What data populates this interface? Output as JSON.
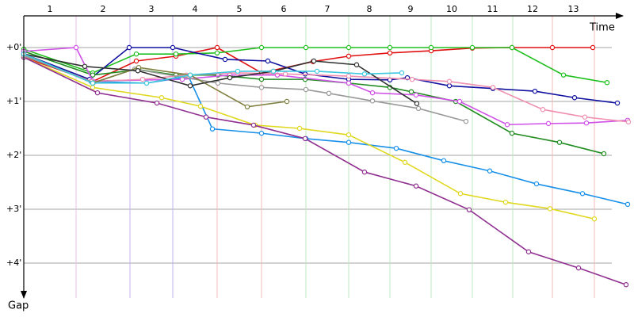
{
  "chart_data": {
    "type": "line",
    "x_label": "Time",
    "y_label": "Gap",
    "xlim": [
      0,
      756
    ],
    "ylim": [
      -0.6,
      4.6
    ],
    "yticks": [
      {
        "value": 0,
        "label": "+0'"
      },
      {
        "value": 1,
        "label": "+1'"
      },
      {
        "value": 2,
        "label": "+2'"
      },
      {
        "value": 3,
        "label": "+3'"
      },
      {
        "value": 4,
        "label": "+4'"
      }
    ],
    "grid": true,
    "lap_labels": [
      "1",
      "2",
      "3",
      "4",
      "5",
      "6",
      "7",
      "8",
      "9",
      "10",
      "11",
      "12",
      "13"
    ],
    "lap_lines": [
      66,
      134,
      188,
      244,
      300,
      356,
      410,
      462,
      514,
      566,
      617,
      667,
      720
    ],
    "lap_line_colors": [
      "#e8c0e8",
      "#c8b0f0",
      "#c0b0f0",
      "#f4b8b8",
      "#f4b8b8",
      "#bfe8bf",
      "#bfe8bf",
      "#bfe8bf",
      "#bfe8bf",
      "#bfe8bf",
      "#bfe8bf",
      "#f4b8b8",
      "#f4b8b8"
    ],
    "series": [
      {
        "color": "#e01010",
        "x": [
          0,
          87,
          142,
          192,
          244,
          300,
          365,
          410,
          462,
          514,
          566,
          616,
          667,
          718
        ],
        "values": [
          0.18,
          0.63,
          0.25,
          0.16,
          0,
          0.47,
          0.26,
          0.16,
          0.1,
          0.06,
          0.01,
          0,
          0,
          0
        ]
      },
      {
        "color": "#20c020",
        "x": [
          0,
          87,
          142,
          192,
          244,
          300,
          356,
          410,
          462,
          514,
          566,
          616,
          681,
          736
        ],
        "values": [
          0.03,
          0.47,
          0.12,
          0.12,
          0.1,
          0,
          0,
          0,
          0,
          0,
          0,
          0,
          0.51,
          0.65
        ]
      },
      {
        "color": "#1010a0",
        "x": [
          0,
          83,
          133,
          188,
          254,
          308,
          355,
          410,
          462,
          484,
          537,
          592,
          645,
          695,
          749
        ],
        "values": [
          0.12,
          0.59,
          0,
          0,
          0.22,
          0.25,
          0.49,
          0.59,
          0.6,
          0.56,
          0.71,
          0.76,
          0.81,
          0.93,
          1.03
        ]
      },
      {
        "color": "#208c20",
        "x": [
          0,
          87,
          145,
          192,
          245,
          300,
          355,
          410,
          462,
          489,
          545,
          616,
          676,
          732
        ],
        "values": [
          0.07,
          0.51,
          0.41,
          0.51,
          0.51,
          0.59,
          0.59,
          0.66,
          0.74,
          0.82,
          1.0,
          1.59,
          1.76,
          1.97
        ]
      },
      {
        "color": "#1890e8",
        "x": [
          0,
          85,
          155,
          208,
          238,
          300,
          356,
          410,
          470,
          530,
          588,
          647,
          705,
          762
        ],
        "values": [
          0.15,
          0.63,
          0.66,
          0.54,
          1.51,
          1.59,
          1.69,
          1.76,
          1.87,
          2.1,
          2.29,
          2.53,
          2.71,
          2.91
        ]
      },
      {
        "color": "#e0d820",
        "x": [
          0,
          87,
          174,
          223,
          292,
          348,
          410,
          481,
          551,
          608,
          664,
          720
        ],
        "values": [
          0.18,
          0.74,
          0.93,
          1.09,
          1.44,
          1.5,
          1.62,
          2.13,
          2.71,
          2.87,
          2.99,
          3.18
        ]
      },
      {
        "color": "#903090",
        "x": [
          0,
          93,
          168,
          230,
          290,
          355,
          430,
          495,
          562,
          637,
          700,
          760
        ],
        "values": [
          0.18,
          0.84,
          1.03,
          1.29,
          1.44,
          1.69,
          2.31,
          2.57,
          3.01,
          3.79,
          4.09,
          4.4
        ]
      },
      {
        "color": "#d050e8",
        "x": [
          0,
          66,
          87,
          200,
          260,
          320,
          410,
          440,
          495,
          550,
          610,
          662,
          710,
          762
        ],
        "values": [
          0.07,
          0,
          0.62,
          0.59,
          0.51,
          0.51,
          0.66,
          0.84,
          0.88,
          1.0,
          1.43,
          1.41,
          1.4,
          1.35
        ]
      },
      {
        "color": "#f090b0",
        "x": [
          0,
          86,
          150,
          205,
          270,
          330,
          410,
          490,
          537,
          592,
          655,
          708,
          763
        ],
        "values": [
          0.15,
          0.63,
          0.59,
          0.51,
          0.47,
          0.49,
          0.53,
          0.59,
          0.63,
          0.74,
          1.15,
          1.29,
          1.38
        ]
      },
      {
        "color": "#999999",
        "x": [
          0,
          88,
          140,
          245,
          300,
          356,
          385,
          440,
          498,
          558
        ],
        "values": [
          0.15,
          0.65,
          0.4,
          0.66,
          0.74,
          0.78,
          0.85,
          0.99,
          1.13,
          1.37
        ]
      },
      {
        "color": "#808040",
        "x": [
          0,
          87,
          145,
          210,
          282,
          332
        ],
        "values": [
          0.12,
          0.66,
          0.37,
          0.51,
          1.1,
          1.0
        ]
      },
      {
        "color": "#303030",
        "x": [
          0,
          77,
          144,
          210,
          260,
          315,
          366,
          420,
          496
        ],
        "values": [
          0.12,
          0.35,
          0.43,
          0.71,
          0.56,
          0.44,
          0.25,
          0.32,
          1.04
        ]
      },
      {
        "color": "#40c8e0",
        "x": [
          0,
          87,
          155,
          210,
          270,
          315,
          370,
          430,
          477
        ],
        "values": [
          0.12,
          0.66,
          0.66,
          0.51,
          0.44,
          0.44,
          0.44,
          0.49,
          0.47
        ]
      }
    ]
  }
}
